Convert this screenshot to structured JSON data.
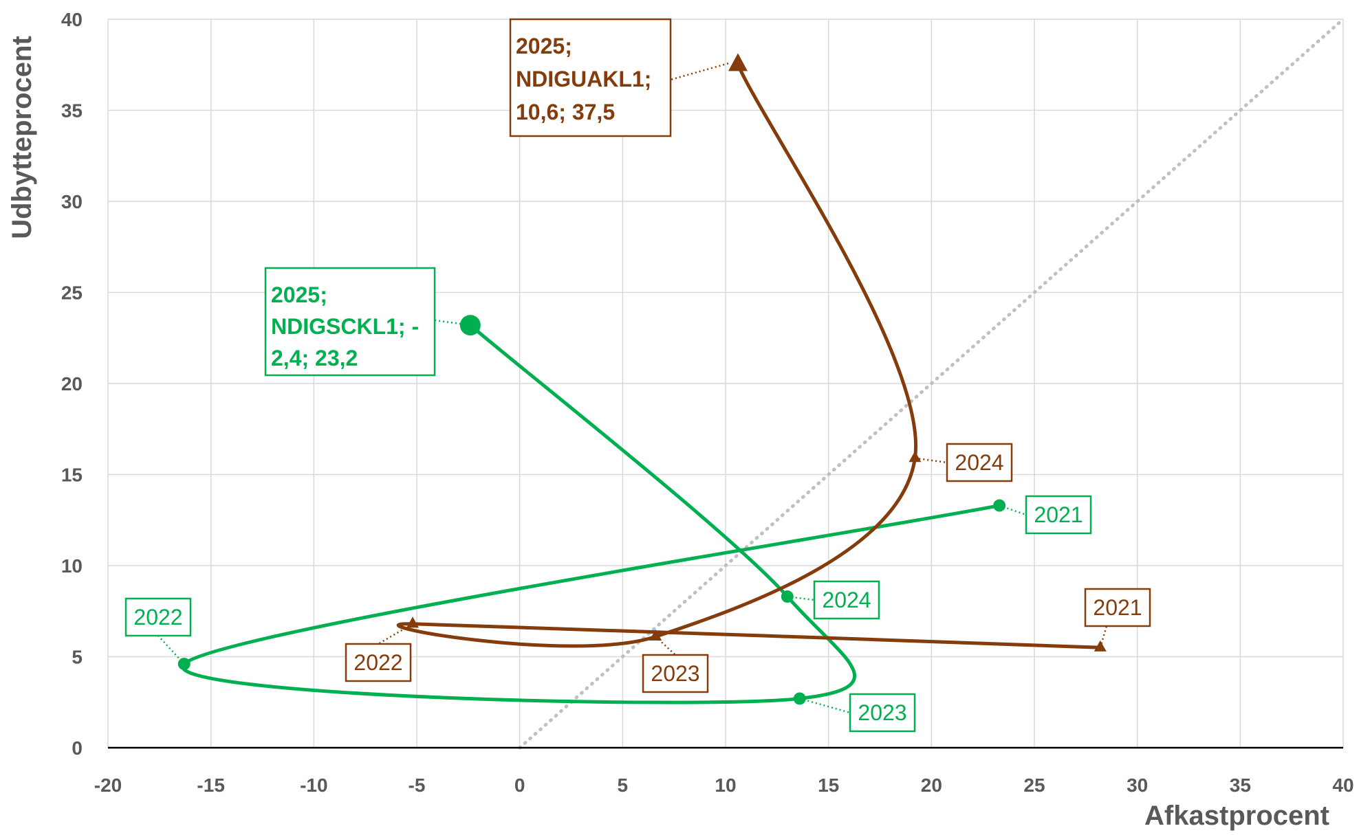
{
  "chart_data": {
    "type": "scatter",
    "title": "",
    "xlabel": "Afkastprocent",
    "ylabel": "Udbytteprocent",
    "xlim": [
      -20,
      40
    ],
    "ylim": [
      0,
      40
    ],
    "xticks": [
      "-20",
      "-15",
      "-10",
      "-5",
      "0",
      "5",
      "10",
      "15",
      "20",
      "25",
      "30",
      "35",
      "40"
    ],
    "yticks": [
      "0",
      "5",
      "10",
      "15",
      "20",
      "25",
      "30",
      "35",
      "40"
    ],
    "grid": true,
    "reference_line": {
      "style": "dotted",
      "color": "#c0c0c0",
      "from": [
        0,
        0
      ],
      "to": [
        40,
        40
      ]
    },
    "series": [
      {
        "name": "NDIGSCKL1",
        "color": "#00b050",
        "marker": "circle",
        "points": [
          {
            "year": "2021",
            "x": 23.3,
            "y": 13.3
          },
          {
            "year": "2022",
            "x": -16.3,
            "y": 4.6
          },
          {
            "year": "2023",
            "x": 13.6,
            "y": 2.7
          },
          {
            "year": "2024",
            "x": 13.0,
            "y": 8.3
          },
          {
            "year": "2025",
            "x": -2.4,
            "y": 23.2
          }
        ],
        "labels": [
          "2021",
          "2022",
          "2023",
          "2024"
        ],
        "final_label": [
          "2025;",
          "NDIGSCKL1; -",
          "2,4; 23,2"
        ]
      },
      {
        "name": "NDIGUAKL1",
        "color": "#843c0c",
        "marker": "triangle",
        "points": [
          {
            "year": "2021",
            "x": 28.2,
            "y": 5.5
          },
          {
            "year": "2022",
            "x": -5.2,
            "y": 6.8
          },
          {
            "year": "2023",
            "x": 6.6,
            "y": 6.1
          },
          {
            "year": "2024",
            "x": 19.2,
            "y": 15.9
          },
          {
            "year": "2025",
            "x": 10.6,
            "y": 37.5
          }
        ],
        "labels": [
          "2021",
          "2022",
          "2023",
          "2024"
        ],
        "final_label": [
          "2025;",
          "NDIGUAKL1;",
          "10,6; 37,5"
        ]
      }
    ]
  }
}
